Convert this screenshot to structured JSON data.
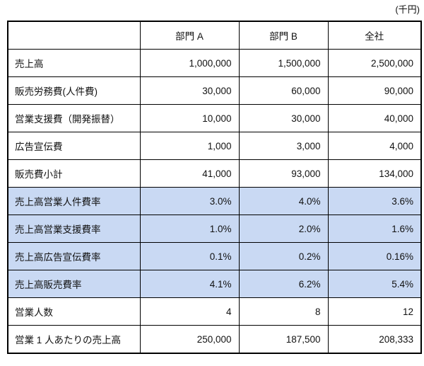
{
  "unit_label": "(千円)",
  "table": {
    "highlight_color": "#C9D9F3",
    "columns": [
      "",
      "部門 A",
      "部門 B",
      "全社"
    ],
    "rows": [
      {
        "label": "売上高",
        "values": [
          "1,000,000",
          "1,500,000",
          "2,500,000"
        ],
        "highlight": false
      },
      {
        "label": "販売労務費(人件費)",
        "values": [
          "30,000",
          "60,000",
          "90,000"
        ],
        "highlight": false
      },
      {
        "label": "営業支援費（開発振替）",
        "values": [
          "10,000",
          "30,000",
          "40,000"
        ],
        "highlight": false
      },
      {
        "label": "広告宣伝費",
        "values": [
          "1,000",
          "3,000",
          "4,000"
        ],
        "highlight": false
      },
      {
        "label": "販売費小計",
        "values": [
          "41,000",
          "93,000",
          "134,000"
        ],
        "highlight": false
      },
      {
        "label": "売上高営業人件費率",
        "values": [
          "3.0%",
          "4.0%",
          "3.6%"
        ],
        "highlight": true
      },
      {
        "label": "売上高営業支援費率",
        "values": [
          "1.0%",
          "2.0%",
          "1.6%"
        ],
        "highlight": true
      },
      {
        "label": "売上高広告宣伝費率",
        "values": [
          "0.1%",
          "0.2%",
          "0.16%"
        ],
        "highlight": true
      },
      {
        "label": "売上高販売費率",
        "values": [
          "4.1%",
          "6.2%",
          "5.4%"
        ],
        "highlight": true
      },
      {
        "label": "営業人数",
        "values": [
          "4",
          "8",
          "12"
        ],
        "highlight": false
      },
      {
        "label": "営業 1 人あたりの売上高",
        "values": [
          "250,000",
          "187,500",
          "208,333"
        ],
        "highlight": false
      }
    ]
  }
}
